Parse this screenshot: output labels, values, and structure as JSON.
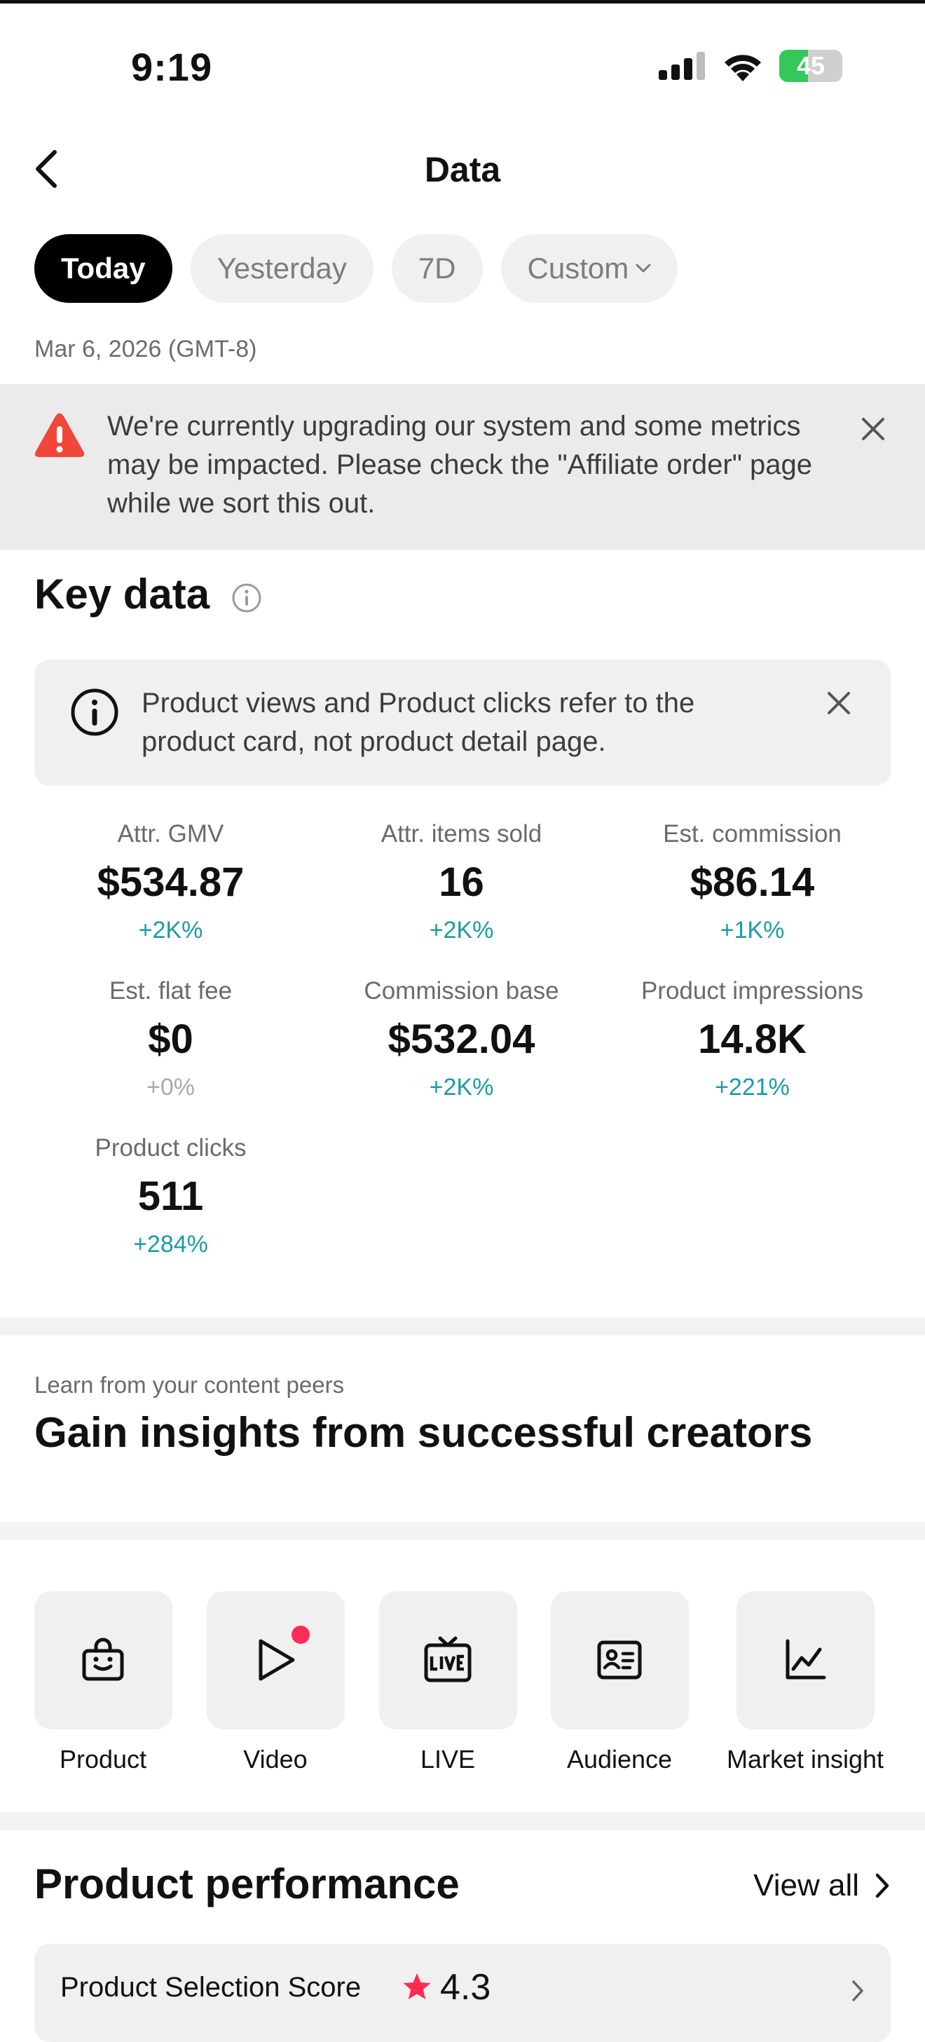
{
  "status_bar": {
    "time": "9:19",
    "battery": "45"
  },
  "header": {
    "title": "Data"
  },
  "tabs": [
    {
      "label": "Today"
    },
    {
      "label": "Yesterday"
    },
    {
      "label": "7D"
    },
    {
      "label": "Custom"
    }
  ],
  "date_range": "Mar 6, 2026 (GMT-8)",
  "warning_banner": {
    "text": "We're currently upgrading our system and some metrics may be impacted. Please check the \"Affiliate order\" page while we sort this out."
  },
  "key_data": {
    "title": "Key data",
    "notice": "Product views and Product clicks refer to the product card, not product detail page.",
    "metrics": [
      {
        "label": "Attr. GMV",
        "value": "$534.87",
        "change": "+2K%"
      },
      {
        "label": "Attr. items sold",
        "value": "16",
        "change": "+2K%"
      },
      {
        "label": "Est. commission",
        "value": "$86.14",
        "change": "+1K%"
      },
      {
        "label": "Est. flat fee",
        "value": "$0",
        "change": "+0%"
      },
      {
        "label": "Commission base",
        "value": "$532.04",
        "change": "+2K%"
      },
      {
        "label": "Product impressions",
        "value": "14.8K",
        "change": "+221%"
      },
      {
        "label": "Product clicks",
        "value": "511",
        "change": "+284%"
      }
    ]
  },
  "peers": {
    "subtitle": "Learn from your content peers",
    "title": "Gain insights from successful creators"
  },
  "tools": [
    {
      "label": "Product",
      "icon": "shopping-bag-icon"
    },
    {
      "label": "Video",
      "icon": "play-icon"
    },
    {
      "label": "LIVE",
      "icon": "live-tv-icon"
    },
    {
      "label": "Audience",
      "icon": "id-card-icon"
    },
    {
      "label": "Market insight",
      "icon": "line-chart-icon"
    }
  ],
  "product_performance": {
    "title": "Product performance",
    "view_all": "View all",
    "selection_score_label": "Product Selection Score",
    "selection_score": "4.3"
  },
  "colors": {
    "accent": "#1b9ba7",
    "warning": "#f0473a",
    "notification_dot": "#ff2d55",
    "star": "#fe2c55"
  }
}
